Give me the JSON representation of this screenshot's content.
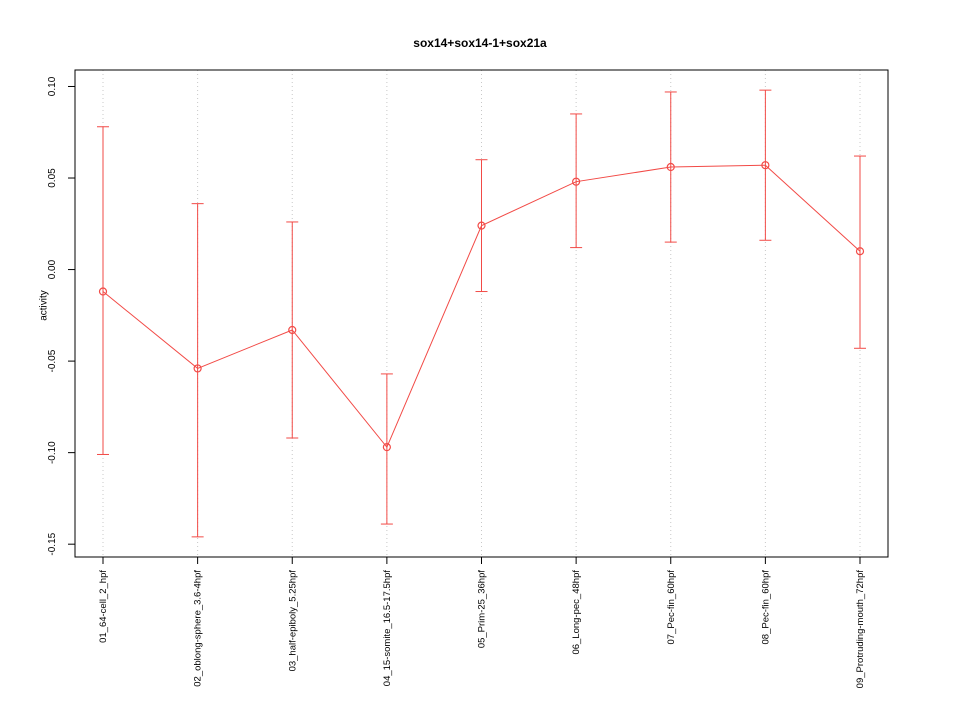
{
  "chart_data": {
    "type": "line",
    "title": "sox14+sox14-1+sox21a",
    "ylabel": "activity",
    "xlabel": "",
    "categories": [
      "01_64-cell_2_hpf",
      "02_oblong-sphere_3.6-4hpf",
      "03_half-epiboly_5.25hpf",
      "04_15-somite_16.5-17.5hpf",
      "05_Prim-25_36hpf",
      "06_Long-pec_48hpf",
      "07_Pec-fin_60hpf",
      "08_Pec-fin_60hpf",
      "09_Protruding-mouth_72hpf"
    ],
    "series": [
      {
        "name": "sox14+sox14-1+sox21a activity",
        "means": [
          -0.012,
          -0.054,
          -0.033,
          -0.097,
          0.024,
          0.048,
          0.056,
          0.057,
          0.01
        ],
        "upper": [
          0.078,
          0.036,
          0.026,
          -0.057,
          0.06,
          0.085,
          0.097,
          0.098,
          0.062
        ],
        "lower": [
          -0.101,
          -0.146,
          -0.092,
          -0.139,
          -0.012,
          0.012,
          0.015,
          0.016,
          -0.043
        ]
      }
    ],
    "ylim": [
      -0.157,
      0.109
    ],
    "yticks": [
      -0.15,
      -0.1,
      -0.05,
      0.0,
      0.05,
      0.1
    ],
    "ytick_labels": [
      "-0.15",
      "-0.10",
      "-0.05",
      "0.00",
      "0.05",
      "0.10"
    ],
    "grid": "vertical-dotted",
    "legend": "none",
    "marker": "open-circle",
    "error_bars": true,
    "colors": {
      "series": "#f24a46",
      "grid": "#c8c8c8",
      "axis": "#000000",
      "background": "#ffffff"
    }
  }
}
